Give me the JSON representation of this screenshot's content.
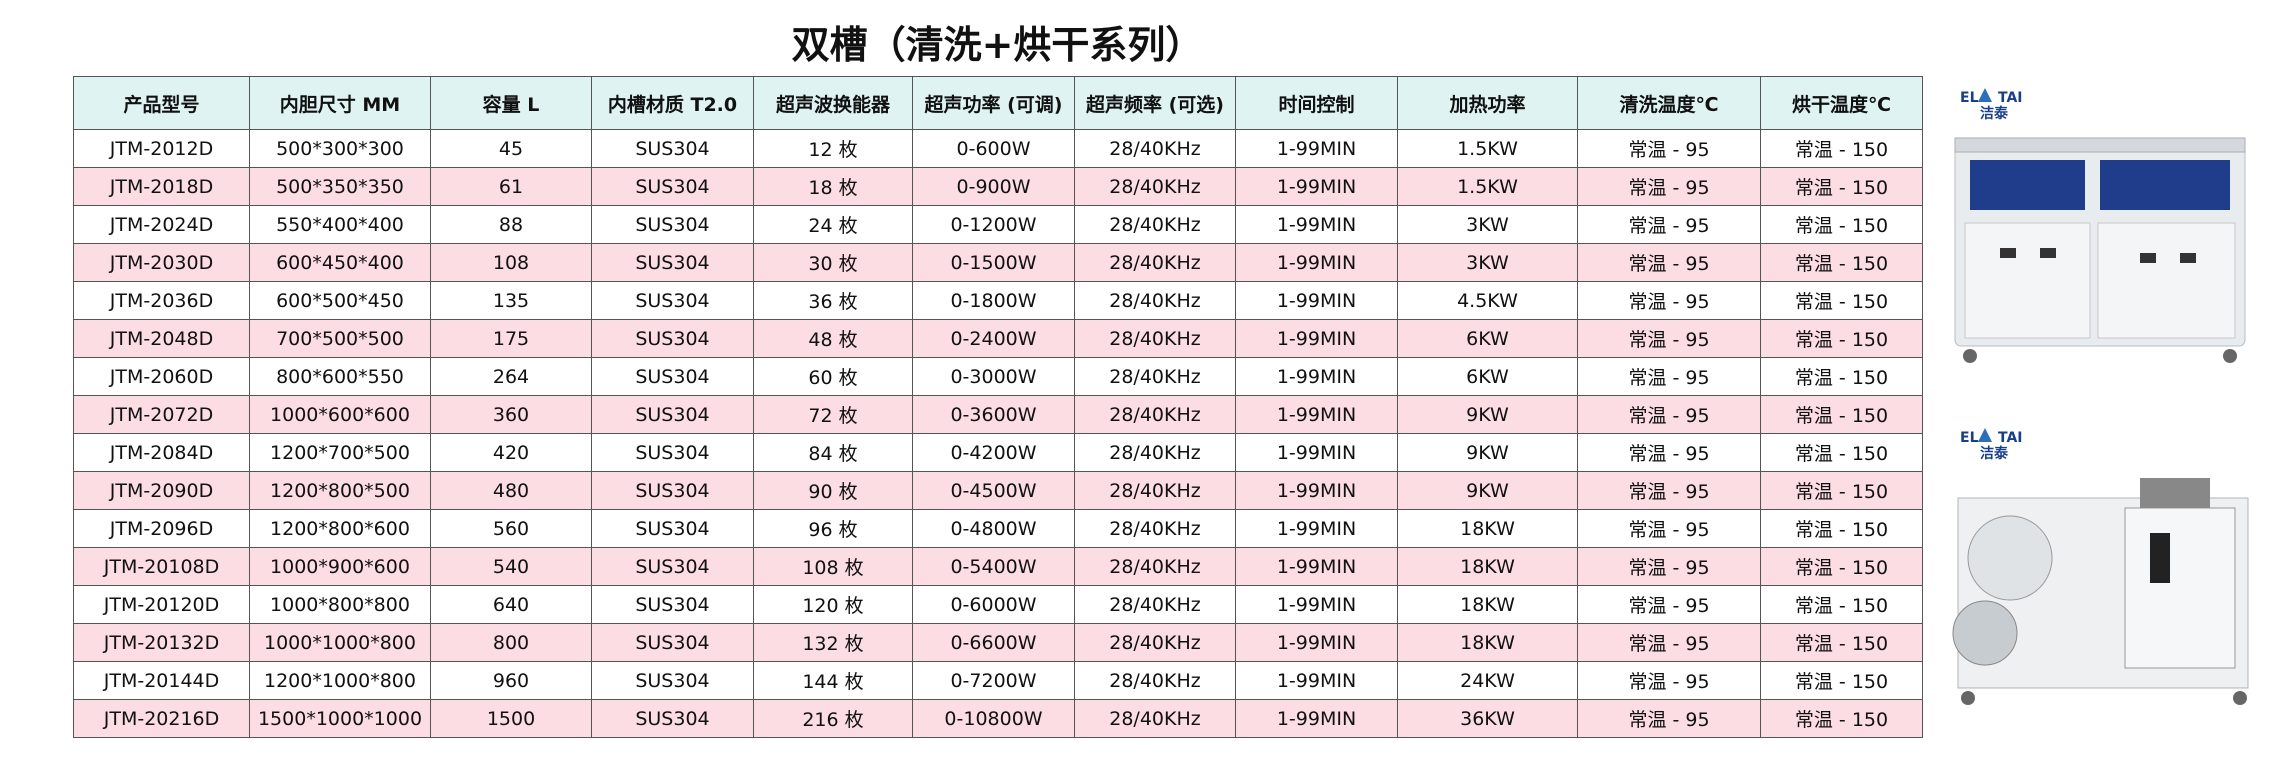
{
  "title": "双槽（清洗+烘干系列）",
  "logo": "洁泰",
  "table": {
    "header": [
      "产品型号",
      "内胆尺寸 MM",
      "容量 L",
      "内槽材质 T2.0",
      "超声波换能器",
      "超声功率 (可调)",
      "超声频率 (可选)",
      "时间控制",
      "加热功率",
      "清洗温度℃",
      "烘干温度℃"
    ],
    "rows": [
      [
        "JTM-2012D",
        "500*300*300",
        "45",
        "SUS304",
        "12 枚",
        "0-600W",
        "28/40KHz",
        "1-99MIN",
        "1.5KW",
        "常温 - 95",
        "常温 - 150"
      ],
      [
        "JTM-2018D",
        "500*350*350",
        "61",
        "SUS304",
        "18 枚",
        "0-900W",
        "28/40KHz",
        "1-99MIN",
        "1.5KW",
        "常温 - 95",
        "常温 - 150"
      ],
      [
        "JTM-2024D",
        "550*400*400",
        "88",
        "SUS304",
        "24 枚",
        "0-1200W",
        "28/40KHz",
        "1-99MIN",
        "3KW",
        "常温 - 95",
        "常温 - 150"
      ],
      [
        "JTM-2030D",
        "600*450*400",
        "108",
        "SUS304",
        "30 枚",
        "0-1500W",
        "28/40KHz",
        "1-99MIN",
        "3KW",
        "常温 - 95",
        "常温 - 150"
      ],
      [
        "JTM-2036D",
        "600*500*450",
        "135",
        "SUS304",
        "36 枚",
        "0-1800W",
        "28/40KHz",
        "1-99MIN",
        "4.5KW",
        "常温 - 95",
        "常温 - 150"
      ],
      [
        "JTM-2048D",
        "700*500*500",
        "175",
        "SUS304",
        "48 枚",
        "0-2400W",
        "28/40KHz",
        "1-99MIN",
        "6KW",
        "常温 - 95",
        "常温 - 150"
      ],
      [
        "JTM-2060D",
        "800*600*550",
        "264",
        "SUS304",
        "60 枚",
        "0-3000W",
        "28/40KHz",
        "1-99MIN",
        "6KW",
        "常温 - 95",
        "常温 - 150"
      ],
      [
        "JTM-2072D",
        "1000*600*600",
        "360",
        "SUS304",
        "72 枚",
        "0-3600W",
        "28/40KHz",
        "1-99MIN",
        "9KW",
        "常温 - 95",
        "常温 - 150"
      ],
      [
        "JTM-2084D",
        "1200*700*500",
        "420",
        "SUS304",
        "84 枚",
        "0-4200W",
        "28/40KHz",
        "1-99MIN",
        "9KW",
        "常温 - 95",
        "常温 - 150"
      ],
      [
        "JTM-2090D",
        "1200*800*500",
        "480",
        "SUS304",
        "90 枚",
        "0-4500W",
        "28/40KHz",
        "1-99MIN",
        "9KW",
        "常温 - 95",
        "常温 - 150"
      ],
      [
        "JTM-2096D",
        "1200*800*600",
        "560",
        "SUS304",
        "96 枚",
        "0-4800W",
        "28/40KHz",
        "1-99MIN",
        "18KW",
        "常温 - 95",
        "常温 - 150"
      ],
      [
        "JTM-20108D",
        "1000*900*600",
        "540",
        "SUS304",
        "108 枚",
        "0-5400W",
        "28/40KHz",
        "1-99MIN",
        "18KW",
        "常温 - 95",
        "常温 - 150"
      ],
      [
        "JTM-20120D",
        "1000*800*800",
        "640",
        "SUS304",
        "120 枚",
        "0-6000W",
        "28/40KHz",
        "1-99MIN",
        "18KW",
        "常温 - 95",
        "常温 - 150"
      ],
      [
        "JTM-20132D",
        "1000*1000*800",
        "800",
        "SUS304",
        "132 枚",
        "0-6600W",
        "28/40KHz",
        "1-99MIN",
        "18KW",
        "常温 - 95",
        "常温 - 150"
      ],
      [
        "JTM-20144D",
        "1200*1000*800",
        "960",
        "SUS304",
        "144 枚",
        "0-7200W",
        "28/40KHz",
        "1-99MIN",
        "24KW",
        "常温 - 95",
        "常温 - 150"
      ],
      [
        "JTM-20216D",
        "1500*1000*1000",
        "1500",
        "SUS304",
        "216 枚",
        "0-10800W",
        "28/40KHz",
        "1-99MIN",
        "36KW",
        "常温 - 95",
        "常温 - 150"
      ]
    ]
  }
}
